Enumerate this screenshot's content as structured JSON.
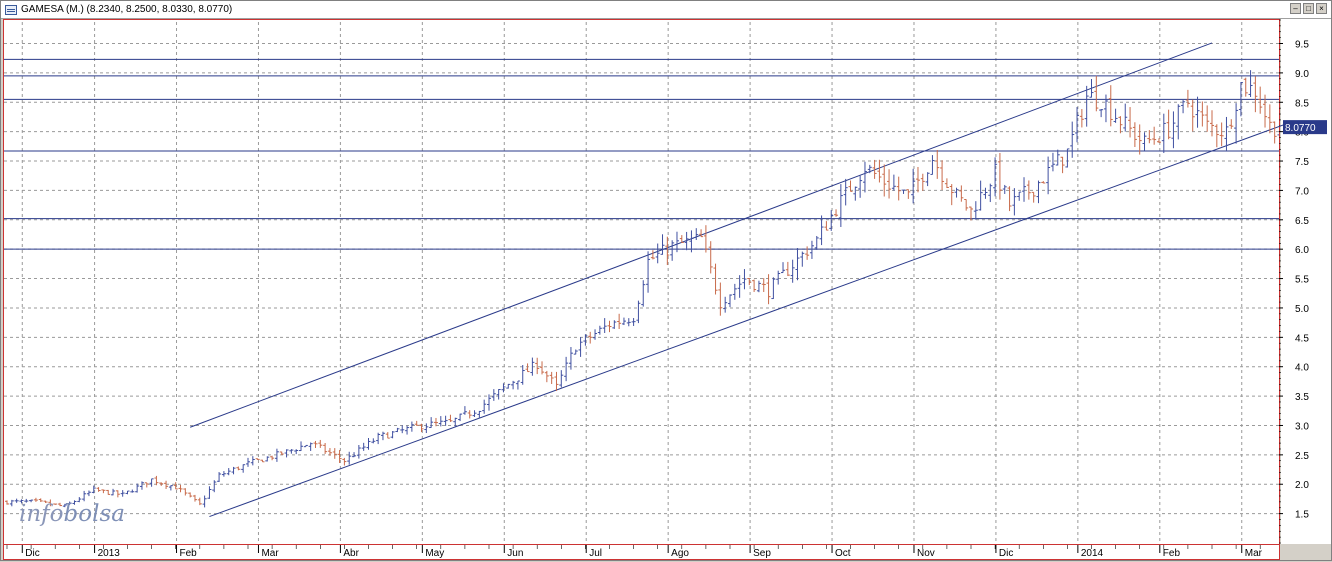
{
  "window": {
    "title": "GAMESA (M.) (8.2340, 8.2500, 8.0330, 8.0770)",
    "buttons": [
      "minimize",
      "restore",
      "close"
    ]
  },
  "watermark": {
    "part1": "info",
    "part2": "bolsa"
  },
  "colors": {
    "up": "#3f4fa0",
    "down": "#c86a4a",
    "lines": "#2a3a8a",
    "grid": "#9a9a9a",
    "last_price_bg": "#2a3a8a"
  },
  "chart_data": {
    "type": "ohlc",
    "title": "GAMESA (M.) (8.2340, 8.2500, 8.0330, 8.0770)",
    "ylim": [
      1.0,
      9.9
    ],
    "grid": true,
    "last_price": "8.0770",
    "y_ticks": [
      {
        "value": 1.5,
        "label": "1.5"
      },
      {
        "value": 2.0,
        "label": "2.0"
      },
      {
        "value": 2.5,
        "label": "2.5"
      },
      {
        "value": 3.0,
        "label": "3.0"
      },
      {
        "value": 3.5,
        "label": "3.5"
      },
      {
        "value": 4.0,
        "label": "4.0"
      },
      {
        "value": 4.5,
        "label": "4.5"
      },
      {
        "value": 5.0,
        "label": "5.0"
      },
      {
        "value": 5.5,
        "label": "5.5"
      },
      {
        "value": 6.0,
        "label": "6.0"
      },
      {
        "value": 6.5,
        "label": "6.5"
      },
      {
        "value": 7.0,
        "label": "7.0"
      },
      {
        "value": 7.5,
        "label": "7.5"
      },
      {
        "value": 8.0,
        "label": "8.0"
      },
      {
        "value": 8.5,
        "label": "8.5"
      },
      {
        "value": 9.0,
        "label": "9.0"
      },
      {
        "value": 9.5,
        "label": "9.5"
      }
    ],
    "x_labels": [
      "Dic",
      "2013",
      "Feb",
      "Mar",
      "Abr",
      "May",
      "Jun",
      "Jul",
      "Ago",
      "Sep",
      "Oct",
      "Nov",
      "Dic",
      "2014",
      "Feb",
      "Mar"
    ],
    "x_label_index": [
      4,
      19,
      36,
      53,
      70,
      87,
      104,
      121,
      138,
      155,
      172,
      189,
      206,
      223,
      240,
      257
    ],
    "horizontal_levels": [
      9.23,
      8.95,
      8.55,
      7.67,
      6.52,
      6.0
    ],
    "trendlines": [
      {
        "name": "upper-channel",
        "from": {
          "i": 38,
          "v": 2.97
        },
        "to": {
          "i": 250,
          "v": 9.51
        }
      },
      {
        "name": "lower-channel",
        "from": {
          "i": 42,
          "v": 1.45
        },
        "to": {
          "i": 266,
          "v": 8.15
        }
      }
    ],
    "anchors": [
      [
        0,
        1.7
      ],
      [
        6,
        1.7
      ],
      [
        12,
        1.62
      ],
      [
        18,
        1.9
      ],
      [
        24,
        1.82
      ],
      [
        30,
        2.08
      ],
      [
        35,
        1.95
      ],
      [
        40,
        1.65
      ],
      [
        44,
        2.15
      ],
      [
        50,
        2.35
      ],
      [
        58,
        2.55
      ],
      [
        63,
        2.7
      ],
      [
        70,
        2.4
      ],
      [
        77,
        2.8
      ],
      [
        86,
        3.0
      ],
      [
        92,
        3.05
      ],
      [
        98,
        3.3
      ],
      [
        104,
        3.7
      ],
      [
        110,
        4.05
      ],
      [
        114,
        3.65
      ],
      [
        118,
        4.35
      ],
      [
        125,
        4.72
      ],
      [
        130,
        4.85
      ],
      [
        133,
        5.8
      ],
      [
        138,
        6.05
      ],
      [
        144,
        6.18
      ],
      [
        148,
        5.1
      ],
      [
        153,
        5.5
      ],
      [
        158,
        5.3
      ],
      [
        162,
        5.65
      ],
      [
        168,
        6.15
      ],
      [
        172,
        6.7
      ],
      [
        178,
        7.4
      ],
      [
        182,
        7.15
      ],
      [
        187,
        6.9
      ],
      [
        192,
        7.55
      ],
      [
        197,
        6.9
      ],
      [
        200,
        6.65
      ],
      [
        205,
        7.3
      ],
      [
        208,
        6.75
      ],
      [
        213,
        7.05
      ],
      [
        220,
        7.65
      ],
      [
        224,
        8.6
      ],
      [
        227,
        8.55
      ],
      [
        232,
        8.1
      ],
      [
        236,
        7.8
      ],
      [
        241,
        8.05
      ],
      [
        245,
        8.5
      ],
      [
        249,
        8.1
      ],
      [
        253,
        8.0
      ],
      [
        256,
        8.8
      ],
      [
        259,
        8.7
      ],
      [
        262,
        8.1
      ],
      [
        264,
        8.08
      ]
    ],
    "bars_count": 265
  }
}
